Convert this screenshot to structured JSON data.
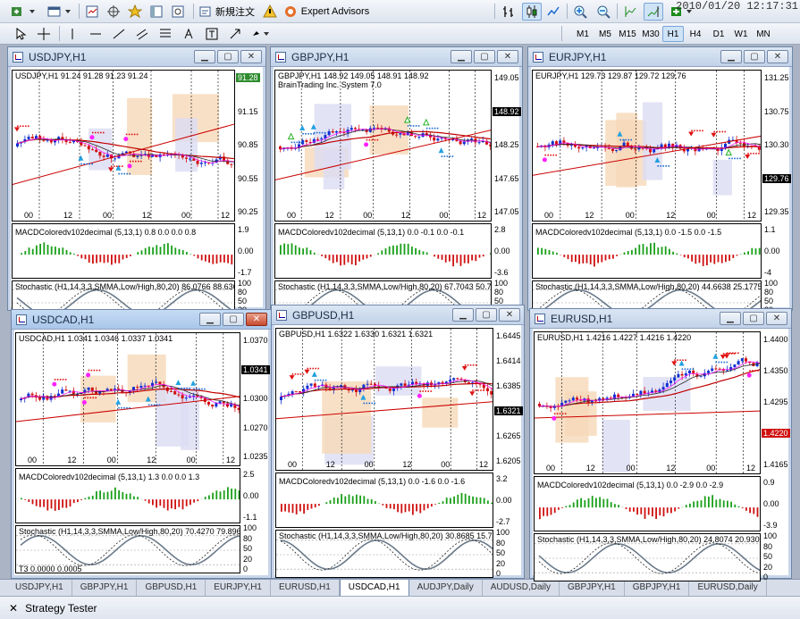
{
  "clock": "2010/01/20 12:17:31",
  "toolbar": {
    "new_order": "新規注文",
    "expert_advisors": "Expert Advisors"
  },
  "timeframes": [
    "M1",
    "M5",
    "M15",
    "M30",
    "H1",
    "H4",
    "D1",
    "W1",
    "MN"
  ],
  "active_timeframe": "H1",
  "windows": [
    {
      "title": "USDJPY,H1",
      "info": "USDJPY,H1 91.24 91.28 91.23 91.24",
      "info2": "",
      "prices": [
        "91.28",
        "91.15",
        "90.85",
        "90.55",
        "90.25"
      ],
      "tag": "91.28",
      "tag_color": "#2e8b2e",
      "x": [
        "00",
        "12",
        "00",
        "12",
        "00",
        "12"
      ],
      "macd": "MACDColoredv102decimal (5,13,1) 0.8 0.0 0.0 0.8",
      "macd_ax": [
        "1.9",
        "0.00",
        "-1.7"
      ],
      "stoch": "Stochastic (H1,14,3,3,SMMA,Low/High,80,20) 86.0766 88.6364",
      "stoch_ax": [
        "100",
        "80",
        "50",
        "20",
        "0"
      ],
      "active": false
    },
    {
      "title": "GBPJPY,H1",
      "info": "GBPJPY,H1 148.92 149.05 148.91 148.92",
      "info2": "BrainTrading Inc. System 7.0",
      "prices": [
        "149.05",
        "148.92",
        "148.25",
        "147.65",
        "147.05"
      ],
      "tag": "148.92",
      "tag_color": "#000",
      "x": [
        "00",
        "12",
        "00",
        "12",
        "00",
        "12"
      ],
      "macd": "MACDColoredv102decimal (5,13,1) 0.0 -0.1 0.0 -0.1",
      "macd_ax": [
        "2.8",
        "0.00",
        "-3.6"
      ],
      "stoch": "Stochastic (H1,14,3,3,SMMA,Low/High,80,20) 67.7043 50.7245",
      "stoch_ax": [
        "100",
        "80",
        "50",
        "20",
        "0"
      ],
      "active": false
    },
    {
      "title": "EURJPY,H1",
      "info": "EURJPY,H1 129.73 129.87 129.72 129.76",
      "info2": "",
      "prices": [
        "131.25",
        "130.75",
        "130.30",
        "129.76",
        "129.35"
      ],
      "tag": "129.76",
      "tag_color": "#000",
      "x": [
        "00",
        "12",
        "00",
        "12",
        "00",
        "12"
      ],
      "macd": "MACDColoredv102decimal (5,13,1) 0.0 -1.5 0.0 -1.5",
      "macd_ax": [
        "1.1",
        "0.00",
        "-4"
      ],
      "stoch": "Stochastic (H1,14,3,3,SMMA,Low/High,80,20) 44.6638 25.1775",
      "stoch_ax": [
        "100",
        "80",
        "50",
        "20",
        "0"
      ],
      "active": false
    },
    {
      "title": "USDCAD,H1",
      "info": "USDCAD,H1 1.0341 1.0346 1.0337 1.0341",
      "info2": "",
      "prices": [
        "1.0370",
        "1.0341",
        "1.0300",
        "1.0270",
        "1.0235"
      ],
      "tag": "1.0341",
      "tag_color": "#000",
      "x": [
        "00",
        "12",
        "00",
        "12",
        "00",
        "12"
      ],
      "macd": "MACDColoredv102decimal (5,13,1) 1.3 0.0 0.0 1.3",
      "macd_ax": [
        "2.5",
        "0.00",
        "-1.1"
      ],
      "stoch": "Stochastic (H1,14,3,3,SMMA,Low/High,80,20) 70.4270 79.8969",
      "stoch_ax": [
        "100",
        "80",
        "50",
        "20",
        "0"
      ],
      "extra": "T3 0.0000 0.0005",
      "active": true
    },
    {
      "title": "GBPUSD,H1",
      "info": "GBPUSD,H1 1.6322 1.6330 1.6321 1.6321",
      "info2": "",
      "prices": [
        "1.6445",
        "1.6414",
        "1.6385",
        "1.6321",
        "1.6265",
        "1.6205"
      ],
      "tag": "1.6321",
      "tag_color": "#000",
      "x": [
        "00",
        "12",
        "00",
        "12",
        "00",
        "12"
      ],
      "macd": "MACDColoredv102decimal (5,13,1) 0.0 -1.6 0.0 -1.6",
      "macd_ax": [
        "3.2",
        "0.00",
        "-2.7"
      ],
      "stoch": "Stochastic (H1,14,3,3,SMMA,Low/High,80,20) 30.8685 15.7480",
      "stoch_ax": [
        "100",
        "80",
        "50",
        "20",
        "0"
      ],
      "active": false
    },
    {
      "title": "EURUSD,H1",
      "info": "EURUSD,H1 1.4216 1.4227 1.4216 1.4220",
      "info2": "",
      "prices": [
        "1.4400",
        "1.4350",
        "1.4295",
        "1.4220",
        "1.4165"
      ],
      "tag": "1.4220",
      "tag_color": "#d01010",
      "x": [
        "00",
        "12",
        "00",
        "12",
        "00",
        "12"
      ],
      "macd": "MACDColoredv102decimal (5,13,1) 0.0 -2.9 0.0 -2.9",
      "macd_ax": [
        "0.9",
        "0.00",
        "-3.9"
      ],
      "stoch": "Stochastic (H1,14,3,3,SMMA,Low/High,80,20) 24.8074 20.9302",
      "stoch_ax": [
        "100",
        "80",
        "50",
        "20",
        "0"
      ],
      "active": false
    }
  ],
  "tabs": [
    "USDJPY,H1",
    "GBPJPY,H1",
    "GBPUSD,H1",
    "EURJPY,H1",
    "EURUSD,H1",
    "USDCAD,H1",
    "AUDJPY,Daily",
    "AUDUSD,Daily",
    "GBPJPY,H1",
    "GBPJPY,H1",
    "EURUSD,Daily"
  ],
  "active_tab": "USDCAD,H1",
  "strategy_tester": "Strategy Tester",
  "colors": {
    "up": "#1030d0",
    "down": "#d01010",
    "ma": "#c00000",
    "zone_orange": "#f6d8b8",
    "zone_blue": "#dcdcf4"
  }
}
